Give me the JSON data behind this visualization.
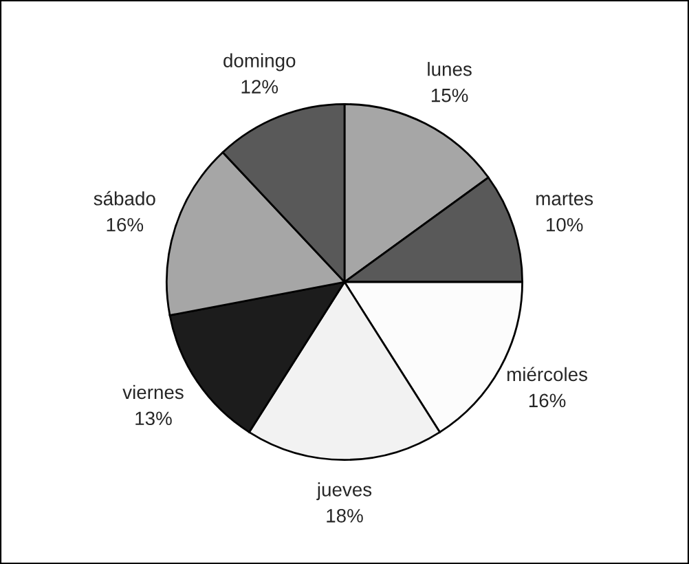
{
  "chart_data": {
    "type": "pie",
    "categories": [
      "lunes",
      "martes",
      "miércoles",
      "jueves",
      "viernes",
      "sábado",
      "domingo"
    ],
    "values": [
      15,
      10,
      16,
      18,
      13,
      16,
      12
    ],
    "value_labels": [
      "15%",
      "10%",
      "16%",
      "18%",
      "13%",
      "16%",
      "12%"
    ],
    "colors": [
      "#a6a6a6",
      "#595959",
      "#fcfcfc",
      "#f2f2f2",
      "#1c1c1c",
      "#a6a6a6",
      "#595959"
    ]
  }
}
